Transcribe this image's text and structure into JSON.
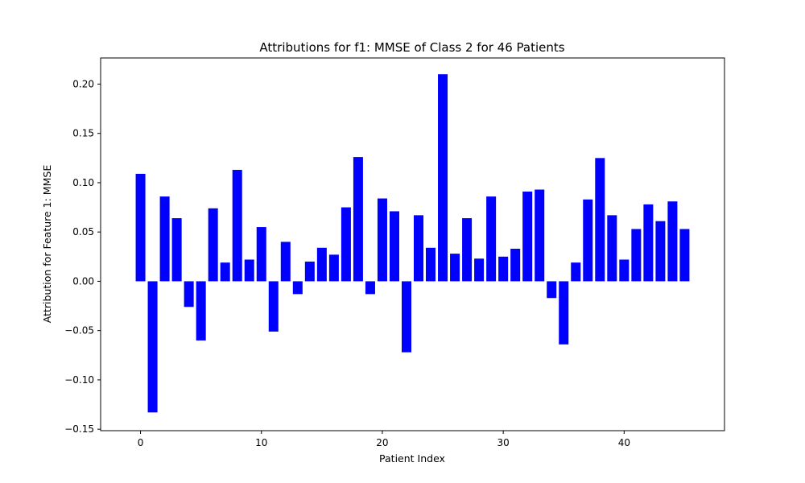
{
  "chart_data": {
    "type": "bar",
    "title": "Attributions for f1: MMSE of Class 2 for 46 Patients",
    "xlabel": "Patient Index",
    "ylabel": "Attribution for Feature 1: MMSE",
    "x": [
      0,
      1,
      2,
      3,
      4,
      5,
      6,
      7,
      8,
      9,
      10,
      11,
      12,
      13,
      14,
      15,
      16,
      17,
      18,
      19,
      20,
      21,
      22,
      23,
      24,
      25,
      26,
      27,
      28,
      29,
      30,
      31,
      32,
      33,
      34,
      35,
      36,
      37,
      38,
      39,
      40,
      41,
      42,
      43,
      44,
      45
    ],
    "values": [
      0.109,
      -0.133,
      0.086,
      0.064,
      -0.026,
      -0.06,
      0.074,
      0.019,
      0.113,
      0.022,
      0.055,
      -0.051,
      0.04,
      -0.013,
      0.02,
      0.034,
      0.027,
      0.075,
      0.126,
      -0.013,
      0.084,
      0.071,
      -0.072,
      0.067,
      0.034,
      0.21,
      0.028,
      0.064,
      0.023,
      0.086,
      0.025,
      0.033,
      0.091,
      0.093,
      -0.017,
      -0.064,
      0.019,
      0.083,
      0.125,
      0.067,
      0.022,
      0.053,
      0.078,
      0.061,
      0.081,
      0.053
    ],
    "xlim": [
      -3.3,
      48.3
    ],
    "ylim": [
      -0.1515,
      0.2265
    ],
    "xticks": [
      0,
      10,
      20,
      30,
      40
    ],
    "xtick_labels": [
      "0",
      "10",
      "20",
      "30",
      "40"
    ],
    "yticks": [
      -0.15,
      -0.1,
      -0.05,
      0.0,
      0.05,
      0.1,
      0.15,
      0.2
    ],
    "ytick_labels": [
      "−0.15",
      "−0.10",
      "−0.05",
      "0.00",
      "0.05",
      "0.10",
      "0.15",
      "0.20"
    ],
    "bar_color": "#0000ff",
    "grid": false,
    "legend": "none"
  }
}
